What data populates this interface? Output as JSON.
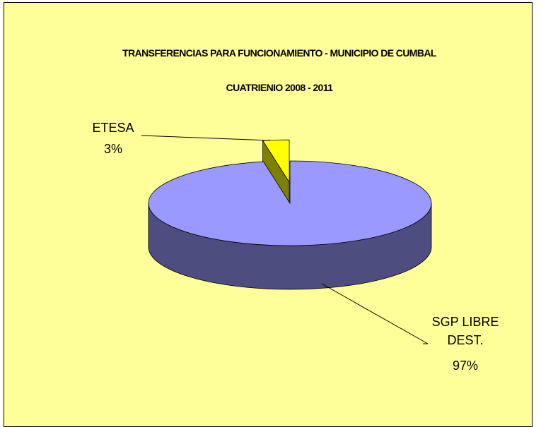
{
  "chart_data": {
    "type": "pie3d",
    "title": "TRANSFERENCIAS PARA FUNCIONAMIENTO - MUNICIPIO DE CUMBAL",
    "subtitle": "CUATRIENIO 2008 - 2011",
    "categories": [
      "SGP LIBRE DEST.",
      "ETESA"
    ],
    "values": [
      97,
      3
    ],
    "value_labels": [
      "97%",
      "3%"
    ],
    "colors": [
      "#9999FF",
      "#FFFF00"
    ]
  }
}
